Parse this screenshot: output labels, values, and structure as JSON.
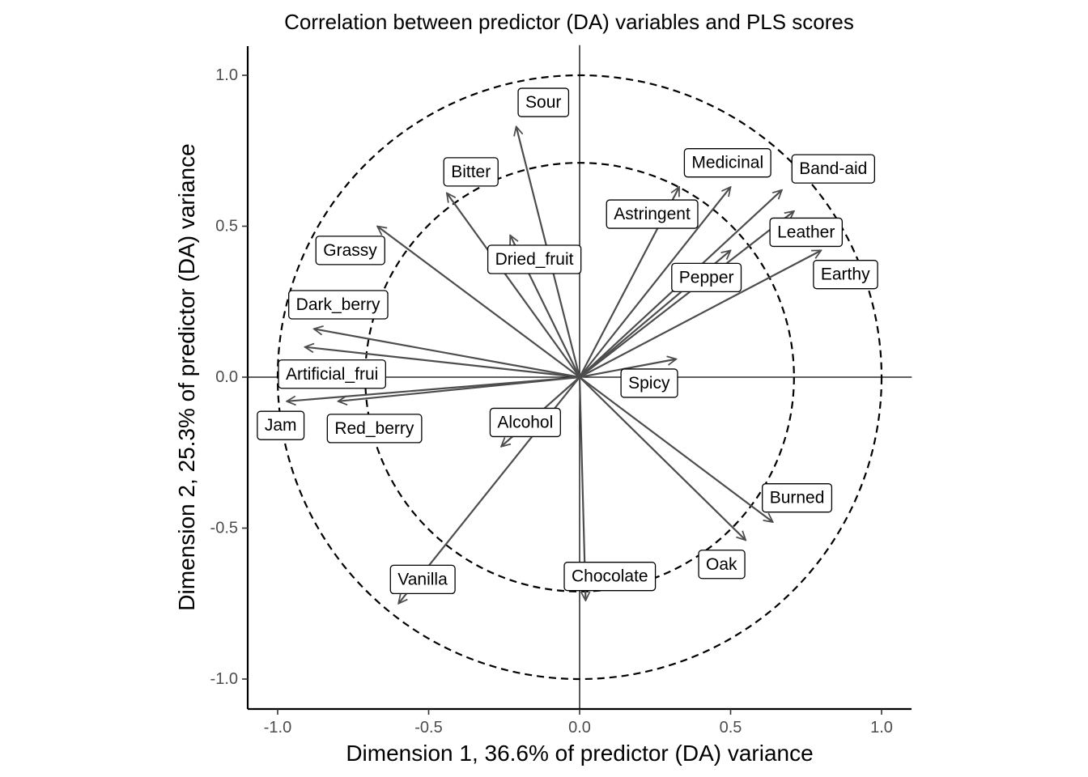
{
  "chart_data": {
    "type": "scatter",
    "title": "Correlation between predictor (DA) variables and PLS scores",
    "xlabel": "Dimension 1, 36.6% of predictor (DA) variance",
    "ylabel": "Dimension 2, 25.3% of predictor (DA) variance",
    "xlim": [
      -1.1,
      1.1
    ],
    "ylim": [
      -1.1,
      1.1
    ],
    "x_ticks": [
      {
        "value": -1.0,
        "label": "-1.0"
      },
      {
        "value": -0.5,
        "label": "-0.5"
      },
      {
        "value": 0.0,
        "label": "0.0"
      },
      {
        "value": 0.5,
        "label": "0.5"
      },
      {
        "value": 1.0,
        "label": "1.0"
      }
    ],
    "y_ticks": [
      {
        "value": 1.0,
        "label": "1.0"
      },
      {
        "value": 0.5,
        "label": "0.5"
      },
      {
        "value": 0.0,
        "label": "0.0"
      },
      {
        "value": -0.5,
        "label": "-0.5"
      },
      {
        "value": -1.0,
        "label": "-1.0"
      }
    ],
    "circles": [
      1.0,
      0.71
    ],
    "grid": false,
    "arrow_color": "#4d4d4d",
    "variables": [
      {
        "name": "Sour",
        "x": -0.21,
        "y": 0.83,
        "label_x": -0.12,
        "label_y": 0.91
      },
      {
        "name": "Bitter",
        "x": -0.44,
        "y": 0.61,
        "label_x": -0.36,
        "label_y": 0.68
      },
      {
        "name": "Medicinal",
        "x": 0.5,
        "y": 0.63,
        "label_x": 0.49,
        "label_y": 0.71
      },
      {
        "name": "Band-aid",
        "x": 0.67,
        "y": 0.62,
        "label_x": 0.84,
        "label_y": 0.69
      },
      {
        "name": "Astringent",
        "x": 0.33,
        "y": 0.63,
        "label_x": 0.24,
        "label_y": 0.54
      },
      {
        "name": "Leather",
        "x": 0.71,
        "y": 0.55,
        "label_x": 0.75,
        "label_y": 0.48
      },
      {
        "name": "Grassy",
        "x": -0.67,
        "y": 0.5,
        "label_x": -0.76,
        "label_y": 0.42
      },
      {
        "name": "Dried_fruit",
        "x": -0.23,
        "y": 0.47,
        "label_x": -0.15,
        "label_y": 0.39
      },
      {
        "name": "Pepper",
        "x": 0.5,
        "y": 0.42,
        "label_x": 0.42,
        "label_y": 0.33
      },
      {
        "name": "Earthy",
        "x": 0.8,
        "y": 0.42,
        "label_x": 0.88,
        "label_y": 0.34
      },
      {
        "name": "Dark_berry",
        "x": -0.88,
        "y": 0.16,
        "label_x": -0.8,
        "label_y": 0.24
      },
      {
        "name": "Artificial_frui",
        "x": -0.91,
        "y": 0.1,
        "label_x": -0.82,
        "label_y": 0.01
      },
      {
        "name": "Spicy",
        "x": 0.32,
        "y": 0.06,
        "label_x": 0.23,
        "label_y": -0.02
      },
      {
        "name": "Jam",
        "x": -0.97,
        "y": -0.08,
        "label_x": -0.99,
        "label_y": -0.16
      },
      {
        "name": "Red_berry",
        "x": -0.8,
        "y": -0.08,
        "label_x": -0.68,
        "label_y": -0.17
      },
      {
        "name": "Alcohol",
        "x": -0.26,
        "y": -0.23,
        "label_x": -0.18,
        "label_y": -0.15
      },
      {
        "name": "Burned",
        "x": 0.64,
        "y": -0.48,
        "label_x": 0.72,
        "label_y": -0.4
      },
      {
        "name": "Oak",
        "x": 0.55,
        "y": -0.54,
        "label_x": 0.47,
        "label_y": -0.62
      },
      {
        "name": "Chocolate",
        "x": 0.02,
        "y": -0.74,
        "label_x": 0.1,
        "label_y": -0.66
      },
      {
        "name": "Vanilla",
        "x": -0.6,
        "y": -0.75,
        "label_x": -0.52,
        "label_y": -0.67
      }
    ]
  }
}
